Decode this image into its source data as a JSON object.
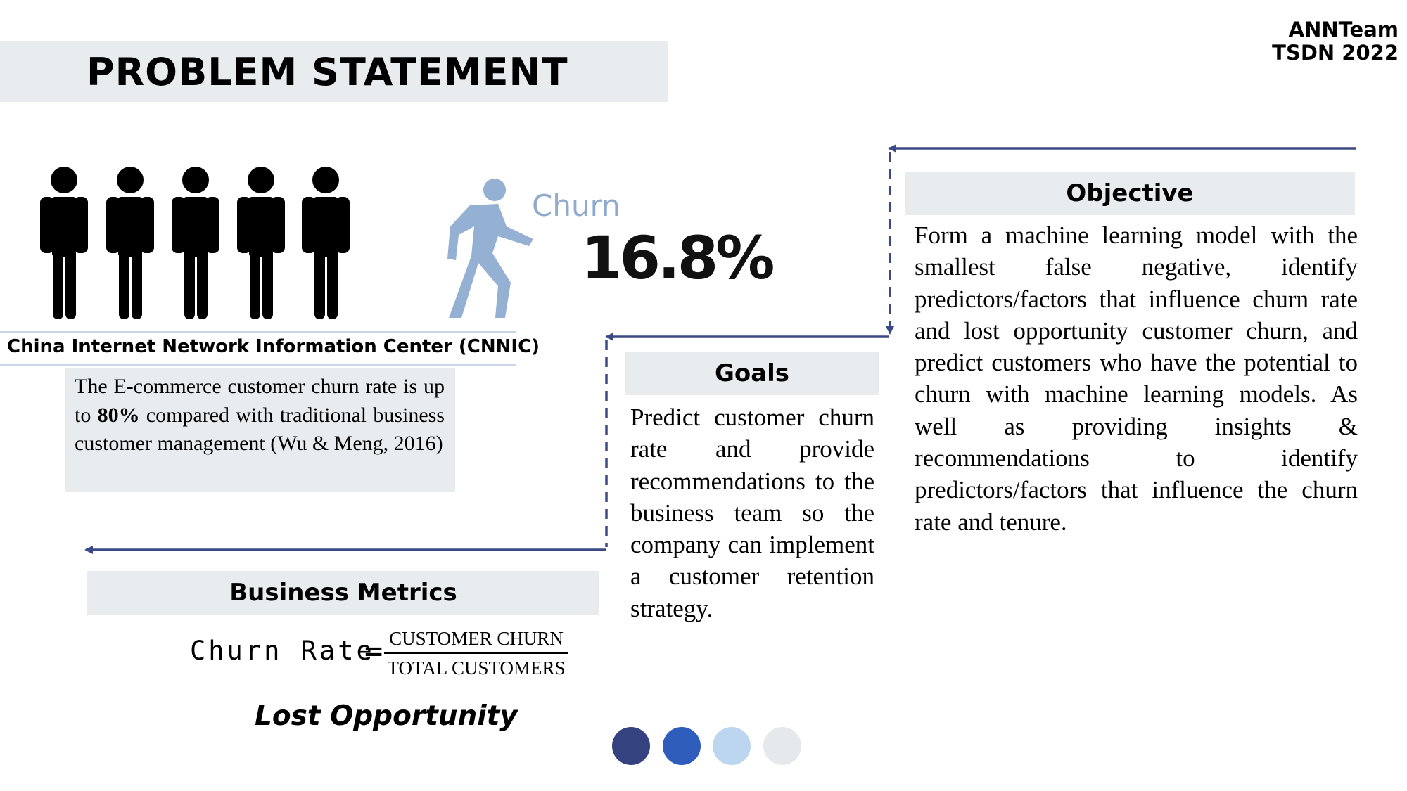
{
  "header": {
    "title": "PROBLEM STATEMENT",
    "team_line1": "ANNTeam",
    "team_line2": "TSDN 2022"
  },
  "churn": {
    "label": "Churn",
    "value": "16.8%"
  },
  "cnnic": {
    "source": "China Internet Network Information Center (CNNIC)",
    "text_before": "The E-commerce customer churn rate is up to ",
    "highlight": "80%",
    "text_after": " compared with traditional business customer management (Wu & Meng, 2016)"
  },
  "objective": {
    "heading": "Objective",
    "body": "Form a machine learning model with the smallest false negative, identify predictors/factors that influence churn rate and lost opportunity customer churn, and predict customers who have the potential to churn with machine learning models. As well as providing insights & recommendations to identify predictors/factors that influence the churn rate and tenure."
  },
  "goals": {
    "heading": "Goals",
    "body": "Predict customer churn rate and provide recommendations to the business team so the company can implement a customer retention strategy."
  },
  "business_metrics": {
    "heading": "Business Metrics",
    "formula_lhs": "Churn Rate",
    "formula_eq": "=",
    "numerator": "CUSTOMER CHURN",
    "denominator": "TOTAL CUSTOMERS",
    "lost_opportunity": "Lost Opportunity"
  },
  "icons": {
    "people": "person-icon",
    "walker": "walking-person-icon"
  },
  "colors": {
    "band": "#e8ecef",
    "connector": "#3b4a85",
    "churn_accent": "#8faacc",
    "dots": [
      "#34437f",
      "#2f5dbc",
      "#bcd6ef",
      "#e6e9ec"
    ]
  }
}
